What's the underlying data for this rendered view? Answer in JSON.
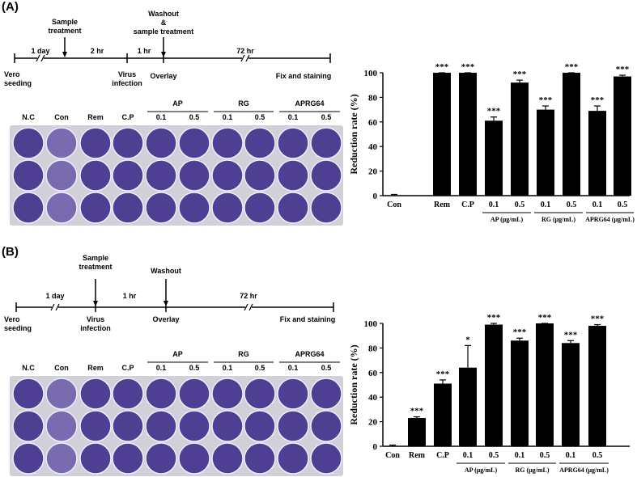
{
  "panels": [
    {
      "label": "(A)",
      "timeline": [
        [
          "Vero",
          "seeding"
        ],
        [
          "1 day"
        ],
        [
          "Sample",
          "treatment"
        ],
        [
          "2 hr"
        ],
        [
          "Virus",
          "infection"
        ],
        [
          "1 hr"
        ],
        [
          "Washout",
          "&",
          "sample treatment"
        ],
        [
          "72 hr"
        ],
        [
          "Overlay"
        ],
        [
          "Fix and staining"
        ]
      ],
      "plate": {
        "columns": [
          "N.C",
          "Con",
          "Rem",
          "C.P"
        ],
        "groups": [
          {
            "name": "AP",
            "doses": [
              "0.1",
              "0.5"
            ]
          },
          {
            "name": "RG",
            "doses": [
              "0.1",
              "0.5"
            ]
          },
          {
            "name": "APRG64",
            "doses": [
              "0.1",
              "0.5"
            ]
          }
        ]
      }
    },
    {
      "label": "(B)",
      "timeline": [
        [
          "Vero",
          "seeding"
        ],
        [
          "1 day"
        ],
        [
          "Sample",
          "treatment"
        ],
        [
          "Virus",
          "infection"
        ],
        [
          "1 hr"
        ],
        [
          "Washout"
        ],
        [
          "72 hr"
        ],
        [
          "Overlay"
        ],
        [
          "Fix and staining"
        ]
      ],
      "plate": {
        "columns": [
          "N.C",
          "Con",
          "Rem",
          "C.P"
        ],
        "groups": [
          {
            "name": "AP",
            "doses": [
              "0.1",
              "0.5"
            ]
          },
          {
            "name": "RG",
            "doses": [
              "0.1",
              "0.5"
            ]
          },
          {
            "name": "APRG64",
            "doses": [
              "0.1",
              "0.5"
            ]
          }
        ]
      }
    }
  ],
  "chart_data": [
    {
      "type": "bar",
      "ylabel": "Reduction rate (%)",
      "color": "#000000",
      "categories": [
        "Con",
        "Rem",
        "C.P",
        "0.1",
        "0.5",
        "0.1",
        "0.5",
        "0.1",
        "0.5"
      ],
      "groups": [
        "AP (μg/mL)",
        "RG (μg/mL)",
        "APRG64 (μg/mL)"
      ],
      "values": [
        0,
        100,
        100,
        61,
        92,
        70,
        100,
        69,
        97
      ],
      "errors": [
        1,
        0,
        0,
        3,
        2,
        3,
        0,
        4,
        1
      ],
      "annotations": [
        null,
        "***",
        "***",
        "***",
        "***",
        "***",
        "***",
        "***",
        "***"
      ],
      "ylim": [
        0,
        100
      ],
      "yticks": [
        0,
        20,
        40,
        60,
        80,
        100
      ]
    },
    {
      "type": "bar",
      "ylabel": "Reduction rate (%)",
      "color": "#000000",
      "categories": [
        "Con",
        "Rem",
        "C.P",
        "0.1",
        "0.5",
        "0.1",
        "0.5",
        "0.1",
        "0.5"
      ],
      "groups": [
        "AP (μg/mL)",
        "RG (μg/mL)",
        "APRG64 (μg/mL)"
      ],
      "values": [
        0,
        23,
        51,
        64,
        99,
        86,
        100,
        84,
        98
      ],
      "errors": [
        1,
        1,
        3,
        18,
        1,
        2,
        0,
        2,
        1
      ],
      "annotations": [
        null,
        "***",
        "***",
        "*",
        "***",
        "***",
        "***",
        "***",
        "***"
      ],
      "ylim": [
        0,
        100
      ],
      "yticks": [
        0,
        20,
        40,
        60,
        80,
        100
      ]
    }
  ]
}
